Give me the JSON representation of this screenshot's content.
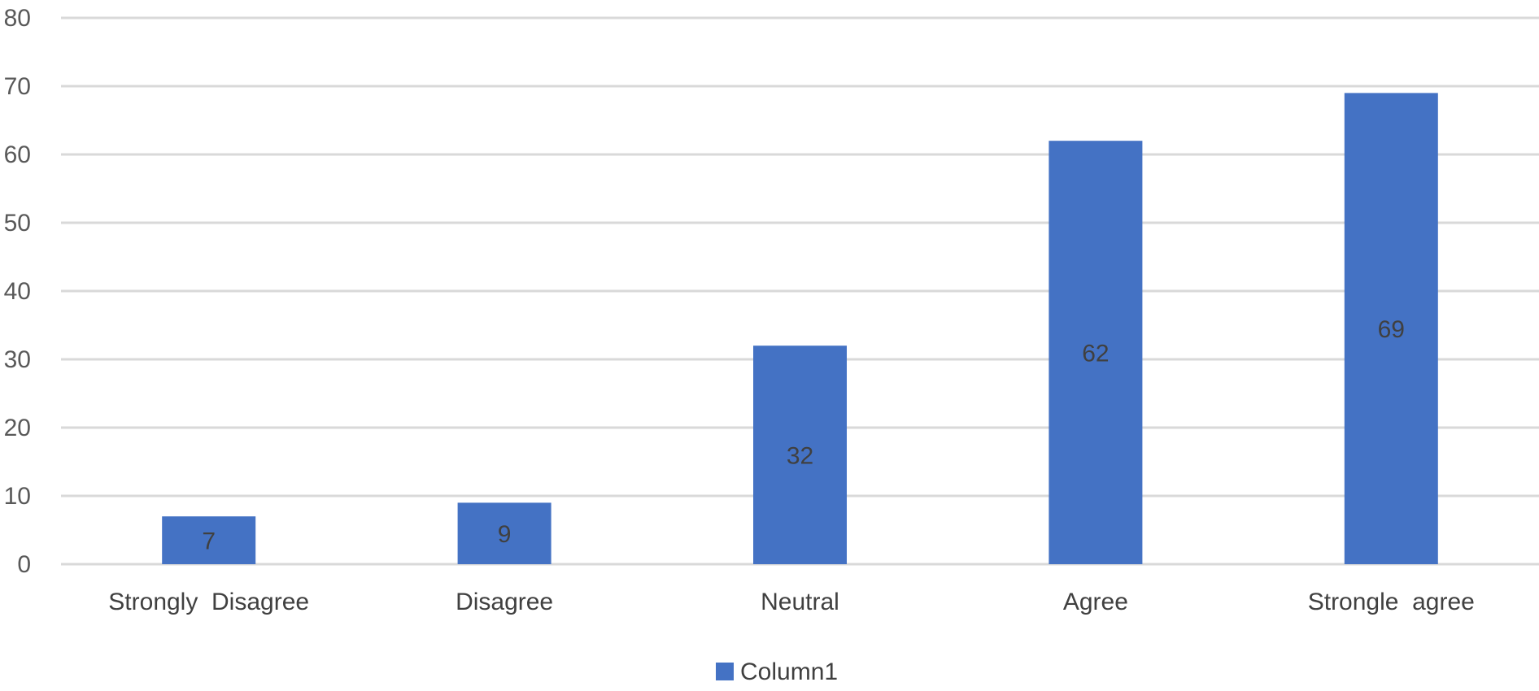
{
  "chart_data": {
    "type": "bar",
    "categories": [
      "Strongly  Disagree",
      "Disagree",
      "Neutral",
      "Agree",
      "Strongle  agree"
    ],
    "series": [
      {
        "name": "Column1",
        "values": [
          7,
          9,
          32,
          62,
          69
        ],
        "color": "#4472c4"
      }
    ],
    "title": "",
    "xlabel": "",
    "ylabel": "",
    "ylim": [
      0,
      80
    ],
    "yticks": [
      0,
      10,
      20,
      30,
      40,
      50,
      60,
      70,
      80
    ],
    "grid": true,
    "legend": "bottom",
    "data_labels": true
  }
}
